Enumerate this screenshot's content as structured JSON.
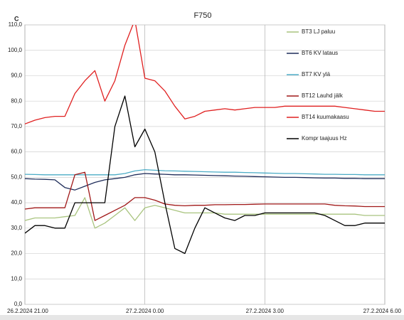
{
  "chart_data": {
    "type": "line",
    "title": "F750",
    "y_label": "C",
    "categories": [
      "26.2.2024 21.00",
      null,
      null,
      null,
      null,
      null,
      null,
      null,
      null,
      null,
      null,
      null,
      "27.2.2024 0.00",
      null,
      null,
      null,
      null,
      null,
      null,
      null,
      null,
      null,
      null,
      null,
      "27.2.2024 3.00",
      null,
      null,
      null,
      null,
      null,
      null,
      null,
      null,
      null,
      null,
      null,
      "27.2.2024 6.00"
    ],
    "ylim": [
      0,
      110
    ],
    "yticks": [
      {
        "value": 0,
        "label": "0,0"
      },
      {
        "value": 10,
        "label": "10,0"
      },
      {
        "value": 20,
        "label": "20,0"
      },
      {
        "value": 30,
        "label": "30,0"
      },
      {
        "value": 40,
        "label": "40,0"
      },
      {
        "value": 50,
        "label": "50,0"
      },
      {
        "value": 60,
        "label": "60,0"
      },
      {
        "value": 70,
        "label": "70,0"
      },
      {
        "value": 80,
        "label": "80,0"
      },
      {
        "value": 90,
        "label": "90,0"
      },
      {
        "value": 100,
        "label": "100,0"
      },
      {
        "value": 110,
        "label": "110,0"
      }
    ],
    "grid": true,
    "legend": "right",
    "series": [
      {
        "name": "BT3 LJ paluu",
        "color": "#a9c47f",
        "values": [
          33,
          34,
          34,
          34,
          34.5,
          35,
          42,
          30,
          32,
          35,
          38,
          33,
          38,
          39,
          38,
          37,
          36,
          36,
          36,
          36,
          35.5,
          35.5,
          35.5,
          35.5,
          35.5,
          35.5,
          35.5,
          35.5,
          35.5,
          35.5,
          35.5,
          35.5,
          35.5,
          35.5,
          35,
          35,
          35
        ]
      },
      {
        "name": "BT6 KV lataus",
        "color": "#1f2d5a",
        "values": [
          49.5,
          49.3,
          49.2,
          49,
          46,
          45,
          46.5,
          48,
          49,
          49.5,
          50,
          51,
          51.5,
          51.3,
          51.2,
          51,
          51,
          50.9,
          50.8,
          50.7,
          50.6,
          50.5,
          50.4,
          50.3,
          50.2,
          50.1,
          50,
          50,
          49.9,
          49.8,
          49.7,
          49.7,
          49.6,
          49.6,
          49.5,
          49.5,
          49.5
        ]
      },
      {
        "name": "BT7 KV ylä",
        "color": "#4bacc6",
        "values": [
          51.2,
          51.1,
          51,
          51,
          51,
          51,
          51,
          51,
          51,
          51,
          51.5,
          52.5,
          53,
          52.8,
          52.6,
          52.5,
          52.4,
          52.3,
          52.2,
          52.1,
          52,
          52,
          51.9,
          51.8,
          51.7,
          51.6,
          51.5,
          51.5,
          51.4,
          51.3,
          51.2,
          51.2,
          51.1,
          51.1,
          51,
          51,
          51
        ]
      },
      {
        "name": "BT12 Lauhd jälk",
        "color": "#a01818",
        "values": [
          37.5,
          38,
          38,
          38,
          38,
          51,
          52,
          33,
          35,
          37,
          39,
          42,
          42,
          41,
          39.5,
          39,
          38.8,
          39,
          39,
          39.2,
          39.2,
          39.3,
          39.3,
          39.4,
          39.5,
          39.5,
          39.5,
          39.5,
          39.5,
          39.5,
          39.5,
          39,
          38.8,
          38.7,
          38.5,
          38.5,
          38.5
        ]
      },
      {
        "name": "BT14 kuumakaasu",
        "color": "#e02020",
        "values": [
          71,
          72.5,
          73.5,
          74,
          74,
          83,
          88,
          92,
          80,
          88,
          102,
          112,
          89,
          88,
          84,
          78,
          73,
          74,
          76,
          76.5,
          77,
          76.5,
          77,
          77.5,
          77.5,
          77.5,
          78,
          78,
          78,
          78,
          78,
          78,
          77.5,
          77,
          76.5,
          76,
          76
        ]
      },
      {
        "name": "Kompr taajuus Hz",
        "color": "#000000",
        "values": [
          28,
          31,
          31,
          30,
          30,
          40,
          40,
          40,
          40,
          70,
          82,
          62,
          69,
          60,
          40,
          22,
          20,
          30,
          38,
          36,
          34,
          33,
          35,
          35,
          36,
          36,
          36,
          36,
          36,
          36,
          35,
          33,
          31,
          31,
          32,
          32,
          32
        ]
      }
    ]
  }
}
